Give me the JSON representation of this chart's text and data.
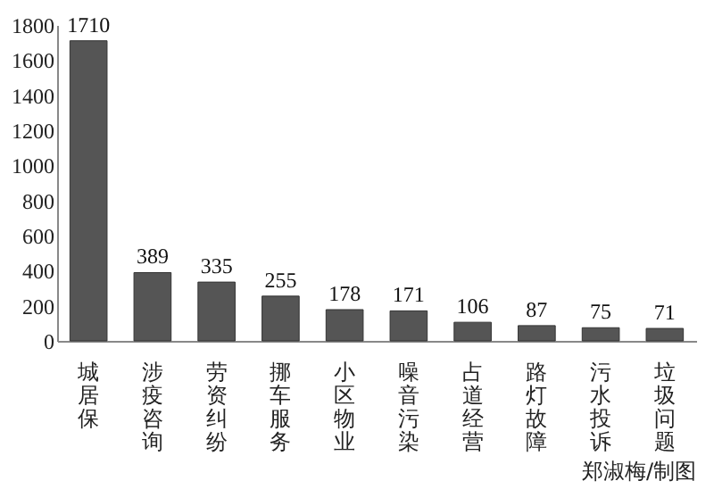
{
  "chart_data": {
    "type": "bar",
    "categories": [
      "城居保",
      "涉疫咨询",
      "劳资纠纷",
      "挪车服务",
      "小区物业",
      "噪音污染",
      "占道经营",
      "路灯故障",
      "污水投诉",
      "垃圾问题"
    ],
    "values": [
      1710,
      389,
      335,
      255,
      178,
      171,
      106,
      87,
      75,
      71
    ],
    "color": "#555555",
    "ylim": [
      0,
      1800
    ],
    "yticks": [
      0,
      200,
      400,
      600,
      800,
      1000,
      1200,
      1400,
      1600,
      1800
    ],
    "data_labels": true,
    "grid": false,
    "annotations": [
      "郑淑梅/制图"
    ]
  }
}
